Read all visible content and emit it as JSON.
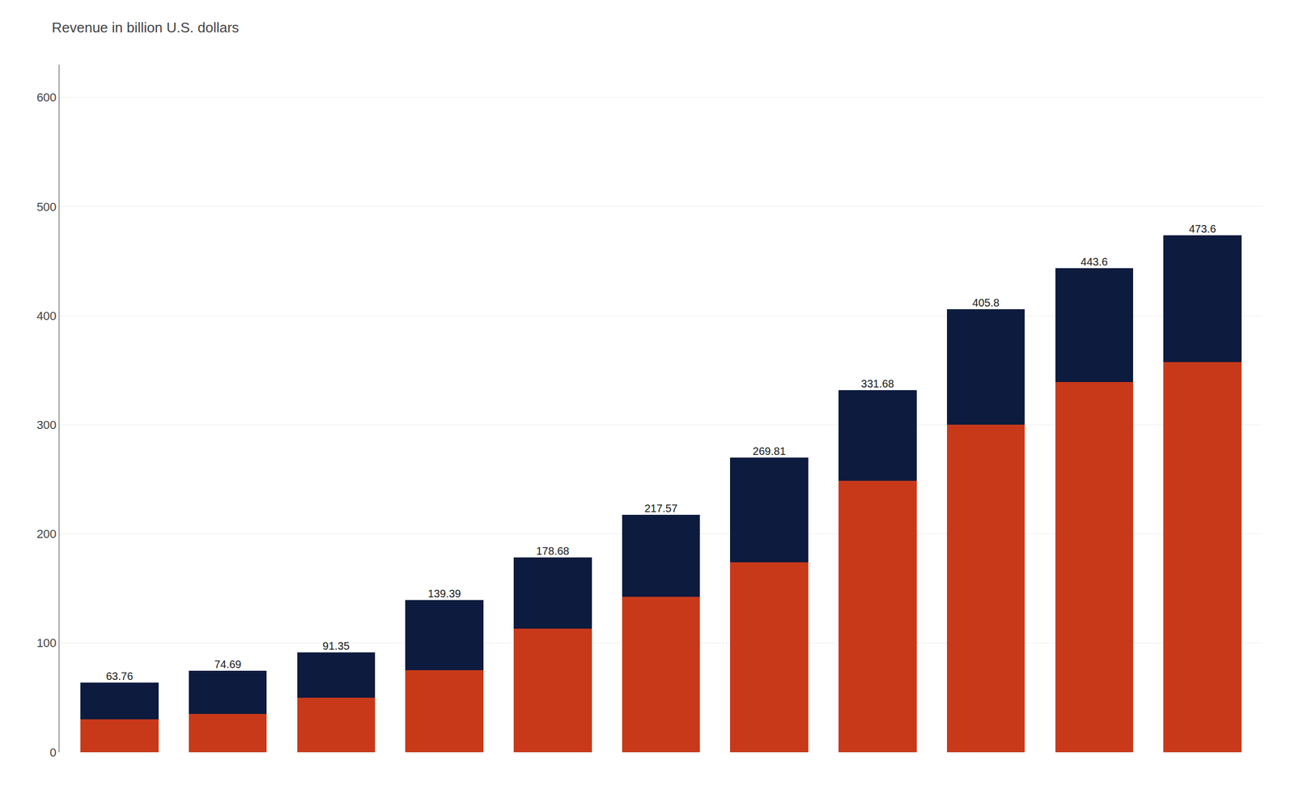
{
  "chart_data": {
    "type": "bar",
    "title": "Revenue in billion U.S. dollars",
    "categories": [
      null,
      null,
      null,
      null,
      null,
      null,
      null,
      null,
      null,
      null,
      null
    ],
    "stacked": true,
    "series": [
      {
        "color": "#C8391A",
        "values": [
          29.9672,
          35.1043,
          49.78575,
          75.2706,
          113.4618,
          142.50835,
          174.02745,
          248.76,
          300.292,
          339.354,
          357.568
        ]
      },
      {
        "color": "#0D1B3E",
        "values": [
          33.7928,
          39.5857,
          41.56425,
          64.1194,
          65.2182,
          75.06165,
          95.78255,
          82.92,
          105.508,
          104.246,
          116.032
        ]
      }
    ],
    "totals": [
      63.76,
      74.69,
      91.35,
      139.39,
      178.68,
      217.57,
      269.81,
      331.68,
      405.8,
      443.6,
      473.6
    ],
    "data_labels": true,
    "ylim": [
      0,
      630
    ],
    "yticks": [
      0,
      100,
      200,
      300,
      400,
      500,
      600
    ],
    "grid": true,
    "tick_labels": "y"
  }
}
